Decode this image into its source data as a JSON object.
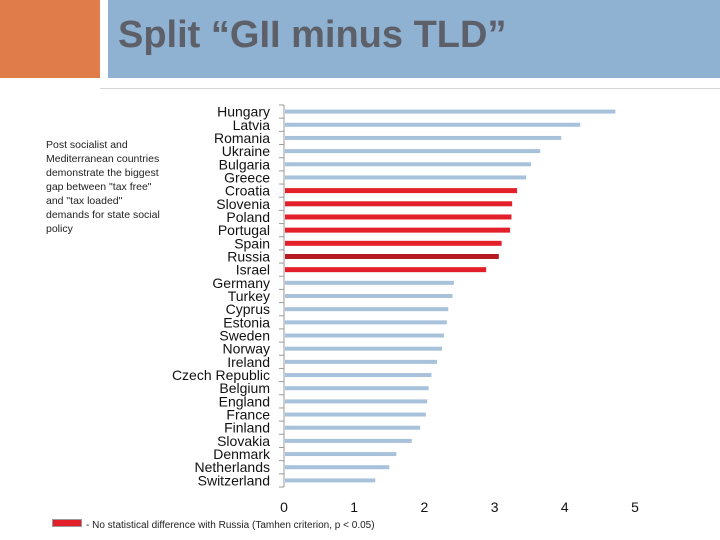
{
  "slide": {
    "title": "Split “GII minus TLD”",
    "note": "Post socialist and Mediterranean countries demonstrate the biggest gap between \"tax free\" and \"tax loaded\" demands for state social policy",
    "legend_text": "- No statistical difference with Russia (Tamhen criterion, p < 0.05)"
  },
  "colors": {
    "accent": "#e07b4a",
    "title_band": "#8fb1d2",
    "bar_default": "#a9c2db",
    "bar_highlight": "#e3202a",
    "bar_russia": "#b51a22"
  },
  "chart_data": {
    "type": "bar",
    "orientation": "horizontal",
    "title": "",
    "xlabel": "",
    "ylabel": "",
    "xlim": [
      0,
      5
    ],
    "x_ticks": [
      0,
      1,
      2,
      3,
      4,
      5
    ],
    "categories": [
      "Hungary",
      "Latvia",
      "Romania",
      "Ukraine",
      "Bulgaria",
      "Greece",
      "Croatia",
      "Slovenia",
      "Poland",
      "Portugal",
      "Spain",
      "Russia",
      "Israel",
      "Germany",
      "Turkey",
      "Cyprus",
      "Estonia",
      "Sweden",
      "Norway",
      "Ireland",
      "Czech Republic",
      "Belgium",
      "England",
      "France",
      "Finland",
      "Slovakia",
      "Denmark",
      "Netherlands",
      "Switzerland"
    ],
    "values": [
      4.72,
      4.22,
      3.95,
      3.65,
      3.52,
      3.45,
      3.32,
      3.25,
      3.24,
      3.22,
      3.1,
      3.06,
      2.88,
      2.42,
      2.4,
      2.34,
      2.32,
      2.28,
      2.25,
      2.18,
      2.1,
      2.06,
      2.04,
      2.02,
      1.94,
      1.82,
      1.6,
      1.5,
      1.3
    ],
    "highlight": [
      "normal",
      "normal",
      "normal",
      "normal",
      "normal",
      "normal",
      "red",
      "red",
      "red",
      "red",
      "red",
      "russia",
      "red",
      "normal",
      "normal",
      "normal",
      "normal",
      "normal",
      "normal",
      "normal",
      "normal",
      "normal",
      "normal",
      "normal",
      "normal",
      "normal",
      "normal",
      "normal",
      "normal"
    ],
    "grid": false
  }
}
